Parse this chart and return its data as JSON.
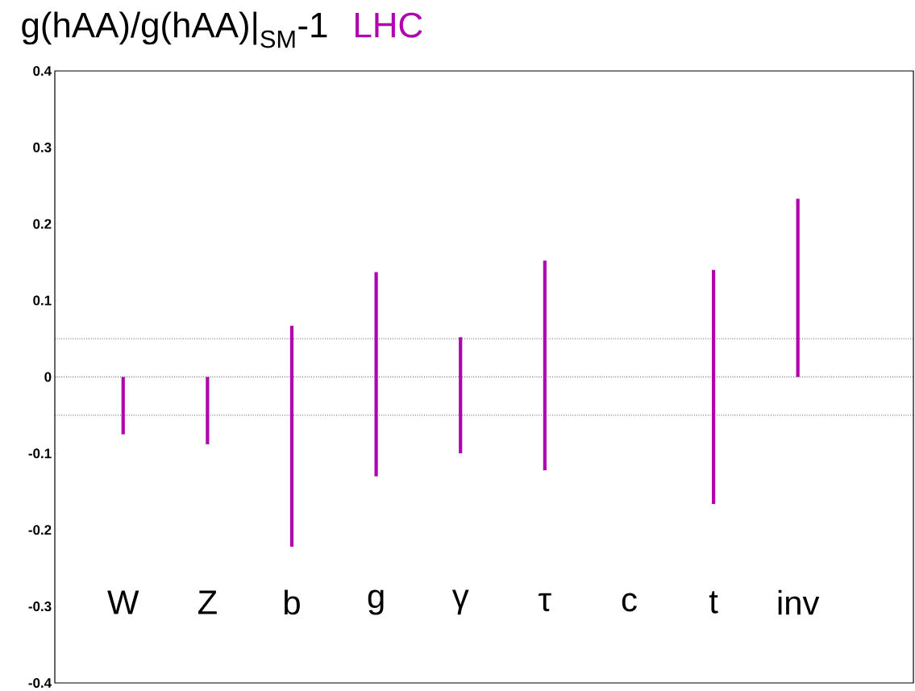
{
  "chart_data": {
    "type": "bar",
    "title": "g(hAA)/g(hAA)|$_{SM}$-1",
    "subtitle": "LHC",
    "categories": [
      "W",
      "Z",
      "b",
      "g",
      "γ",
      "τ",
      "c",
      "t",
      "inv"
    ],
    "base": [
      -0.075,
      -0.088,
      -0.222,
      -0.13,
      -0.1,
      -0.122,
      null,
      -0.166,
      0
    ],
    "values": [
      0.075,
      0.088,
      0.289,
      0.267,
      0.152,
      0.274,
      null,
      0.306,
      0.233
    ],
    "color": "#b000b0",
    "ylim": [
      -0.4,
      0.4
    ],
    "yticks": [
      -0.4,
      -0.3,
      -0.2,
      -0.1,
      0,
      0.1,
      0.2,
      0.3,
      0.4
    ],
    "ref_lines": [
      {
        "axis": "y",
        "value": 0.05,
        "line_style": "dotted",
        "color": "#000000"
      },
      {
        "axis": "y",
        "value": 0,
        "line_style": "dotted",
        "color": "#000000"
      },
      {
        "axis": "y",
        "value": -0.05,
        "line_style": "dotted",
        "color": "#000000"
      }
    ]
  }
}
